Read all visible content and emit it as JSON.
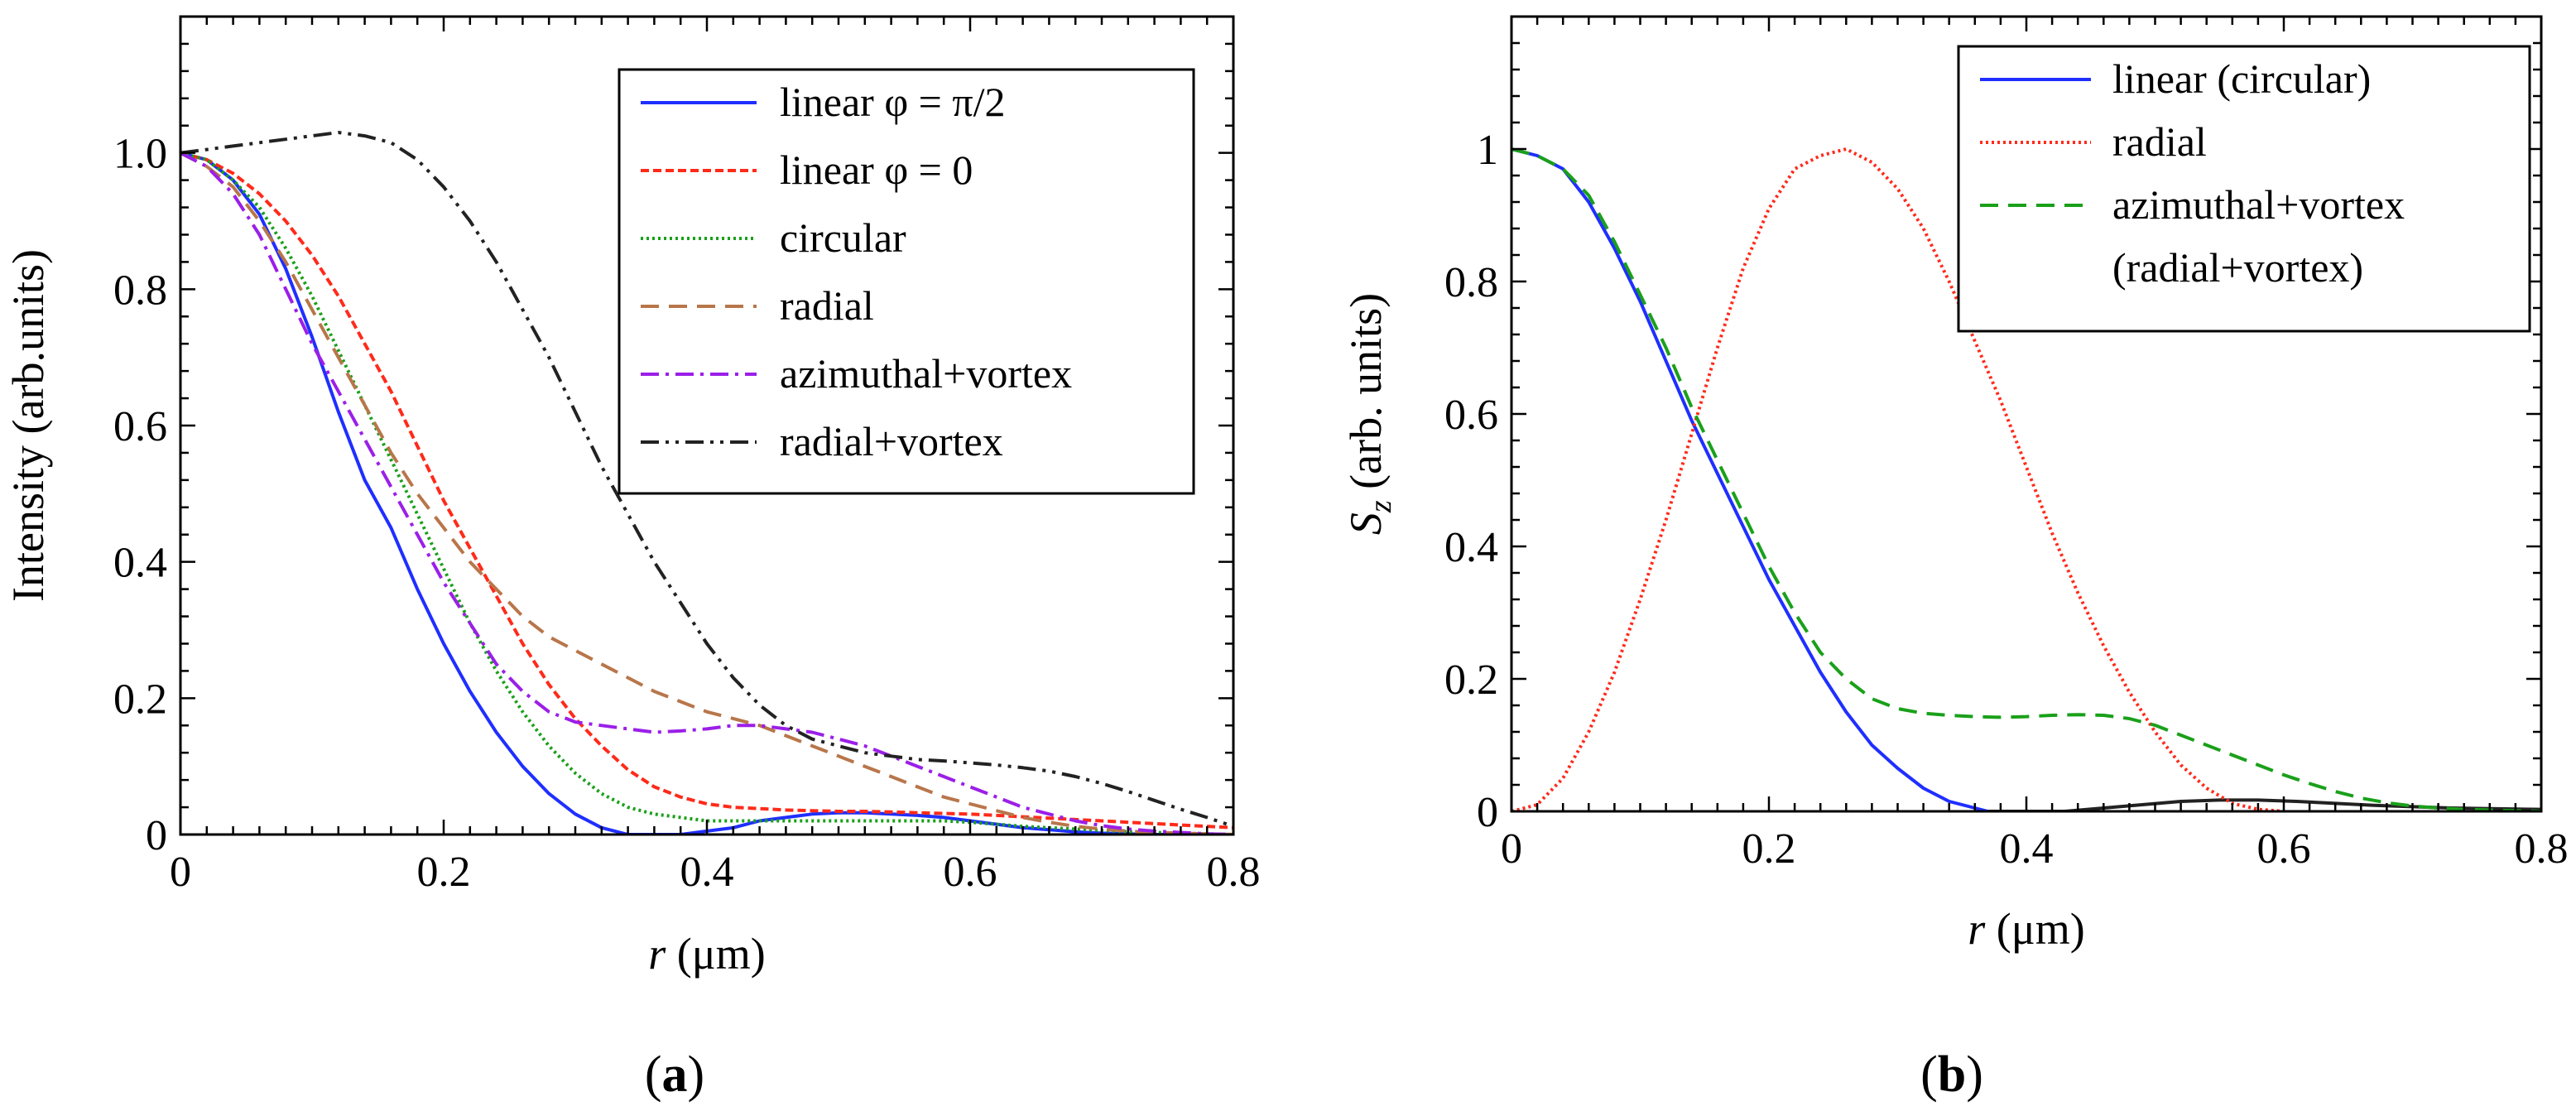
{
  "chart_data": [
    {
      "type": "line",
      "panel_label": "(a)",
      "xlabel": "r (μm)",
      "ylabel": "Intensity (arb.units)",
      "xlim": [
        0,
        0.8
      ],
      "ylim": [
        0,
        1.2
      ],
      "xticks": [
        {
          "value": 0,
          "label": "0"
        },
        {
          "value": 0.2,
          "label": "0.2"
        },
        {
          "value": 0.4,
          "label": "0.4"
        },
        {
          "value": 0.6,
          "label": "0.6"
        },
        {
          "value": 0.8,
          "label": "0.8"
        }
      ],
      "yticks": [
        {
          "value": 0,
          "label": "0"
        },
        {
          "value": 0.2,
          "label": "0.2"
        },
        {
          "value": 0.4,
          "label": "0.4"
        },
        {
          "value": 0.6,
          "label": "0.6"
        },
        {
          "value": 0.8,
          "label": "0.8"
        },
        {
          "value": 1.0,
          "label": "1.0"
        }
      ],
      "legend_position": "top-right",
      "series": [
        {
          "name": "linear φ = π/2",
          "color": "#1f2fff",
          "dash": "solid",
          "x": [
            0,
            0.02,
            0.04,
            0.06,
            0.08,
            0.1,
            0.12,
            0.14,
            0.16,
            0.18,
            0.2,
            0.22,
            0.24,
            0.26,
            0.28,
            0.3,
            0.32,
            0.34,
            0.36,
            0.38,
            0.4,
            0.42,
            0.44,
            0.46,
            0.48,
            0.5,
            0.52,
            0.54,
            0.56,
            0.58,
            0.6,
            0.62,
            0.64,
            0.66,
            0.68,
            0.7,
            0.72,
            0.74,
            0.76,
            0.78,
            0.8
          ],
          "y": [
            1.0,
            0.99,
            0.96,
            0.91,
            0.83,
            0.73,
            0.62,
            0.52,
            0.45,
            0.36,
            0.28,
            0.21,
            0.15,
            0.1,
            0.06,
            0.03,
            0.01,
            0.0,
            0.0,
            0.0,
            0.005,
            0.01,
            0.02,
            0.025,
            0.03,
            0.032,
            0.032,
            0.03,
            0.028,
            0.025,
            0.02,
            0.015,
            0.01,
            0.007,
            0.004,
            0.002,
            0.001,
            0.0,
            0.0,
            0.0,
            0.0
          ]
        },
        {
          "name": "linear φ = 0",
          "color": "#ff2a1a",
          "dash": "10 5",
          "x": [
            0,
            0.02,
            0.04,
            0.06,
            0.08,
            0.1,
            0.12,
            0.14,
            0.16,
            0.18,
            0.2,
            0.22,
            0.24,
            0.26,
            0.28,
            0.3,
            0.32,
            0.34,
            0.36,
            0.38,
            0.4,
            0.42,
            0.44,
            0.46,
            0.48,
            0.5,
            0.52,
            0.54,
            0.56,
            0.58,
            0.6,
            0.62,
            0.64,
            0.66,
            0.68,
            0.7,
            0.72,
            0.74,
            0.76,
            0.78,
            0.8
          ],
          "y": [
            1.0,
            0.99,
            0.97,
            0.94,
            0.9,
            0.85,
            0.79,
            0.72,
            0.65,
            0.57,
            0.49,
            0.42,
            0.35,
            0.28,
            0.22,
            0.17,
            0.13,
            0.095,
            0.07,
            0.055,
            0.045,
            0.04,
            0.038,
            0.036,
            0.035,
            0.034,
            0.034,
            0.033,
            0.032,
            0.031,
            0.03,
            0.028,
            0.026,
            0.024,
            0.022,
            0.02,
            0.018,
            0.016,
            0.014,
            0.012,
            0.01
          ]
        },
        {
          "name": "circular",
          "color": "#1aa01a",
          "dash": "3 4",
          "x": [
            0,
            0.02,
            0.04,
            0.06,
            0.08,
            0.1,
            0.12,
            0.14,
            0.16,
            0.18,
            0.2,
            0.22,
            0.24,
            0.26,
            0.28,
            0.3,
            0.32,
            0.34,
            0.36,
            0.38,
            0.4,
            0.42,
            0.44,
            0.46,
            0.48,
            0.5,
            0.52,
            0.54,
            0.56,
            0.58,
            0.6,
            0.62,
            0.64,
            0.66,
            0.68,
            0.7,
            0.72,
            0.74,
            0.76,
            0.78,
            0.8
          ],
          "y": [
            1.0,
            0.99,
            0.96,
            0.92,
            0.86,
            0.79,
            0.71,
            0.63,
            0.55,
            0.47,
            0.39,
            0.31,
            0.24,
            0.18,
            0.13,
            0.09,
            0.06,
            0.04,
            0.03,
            0.025,
            0.02,
            0.02,
            0.02,
            0.02,
            0.02,
            0.02,
            0.02,
            0.02,
            0.02,
            0.02,
            0.018,
            0.015,
            0.012,
            0.01,
            0.008,
            0.006,
            0.004,
            0.003,
            0.002,
            0.001,
            0.0
          ]
        },
        {
          "name": "radial",
          "color": "#b8764a",
          "dash": "22 12",
          "x": [
            0,
            0.02,
            0.04,
            0.06,
            0.08,
            0.1,
            0.12,
            0.14,
            0.16,
            0.18,
            0.2,
            0.22,
            0.24,
            0.26,
            0.28,
            0.3,
            0.32,
            0.34,
            0.36,
            0.38,
            0.4,
            0.42,
            0.44,
            0.46,
            0.48,
            0.5,
            0.52,
            0.54,
            0.56,
            0.58,
            0.6,
            0.62,
            0.64,
            0.66,
            0.68,
            0.7,
            0.72,
            0.74,
            0.76,
            0.78,
            0.8
          ],
          "y": [
            1.0,
            0.98,
            0.95,
            0.9,
            0.84,
            0.77,
            0.7,
            0.63,
            0.56,
            0.5,
            0.45,
            0.4,
            0.36,
            0.32,
            0.29,
            0.27,
            0.25,
            0.23,
            0.21,
            0.195,
            0.18,
            0.17,
            0.16,
            0.145,
            0.13,
            0.115,
            0.1,
            0.085,
            0.07,
            0.055,
            0.045,
            0.035,
            0.025,
            0.018,
            0.012,
            0.008,
            0.005,
            0.003,
            0.002,
            0.001,
            0.0
          ]
        },
        {
          "name": "azimuthal+vortex",
          "color": "#9b1fe8",
          "dash": "22 8 4 8",
          "x": [
            0,
            0.02,
            0.04,
            0.06,
            0.08,
            0.1,
            0.12,
            0.14,
            0.16,
            0.18,
            0.2,
            0.22,
            0.24,
            0.26,
            0.28,
            0.3,
            0.32,
            0.34,
            0.36,
            0.38,
            0.4,
            0.42,
            0.44,
            0.46,
            0.48,
            0.5,
            0.52,
            0.54,
            0.56,
            0.58,
            0.6,
            0.62,
            0.64,
            0.66,
            0.68,
            0.7,
            0.72,
            0.74,
            0.76,
            0.78,
            0.8
          ],
          "y": [
            1.0,
            0.98,
            0.94,
            0.88,
            0.8,
            0.72,
            0.65,
            0.58,
            0.51,
            0.44,
            0.37,
            0.31,
            0.25,
            0.21,
            0.18,
            0.165,
            0.16,
            0.155,
            0.15,
            0.152,
            0.155,
            0.16,
            0.16,
            0.155,
            0.15,
            0.14,
            0.13,
            0.115,
            0.1,
            0.085,
            0.07,
            0.055,
            0.04,
            0.03,
            0.02,
            0.013,
            0.008,
            0.005,
            0.003,
            0.001,
            0.0
          ]
        },
        {
          "name": "radial+vortex",
          "color": "#222222",
          "dash": "22 8 4 8 4 8",
          "x": [
            0,
            0.02,
            0.04,
            0.06,
            0.08,
            0.1,
            0.12,
            0.14,
            0.16,
            0.18,
            0.2,
            0.22,
            0.24,
            0.26,
            0.28,
            0.3,
            0.32,
            0.34,
            0.36,
            0.38,
            0.4,
            0.42,
            0.44,
            0.46,
            0.48,
            0.5,
            0.52,
            0.54,
            0.56,
            0.58,
            0.6,
            0.62,
            0.64,
            0.66,
            0.68,
            0.7,
            0.72,
            0.74,
            0.76,
            0.78,
            0.8
          ],
          "y": [
            1.0,
            1.005,
            1.01,
            1.015,
            1.02,
            1.025,
            1.03,
            1.025,
            1.015,
            0.99,
            0.95,
            0.9,
            0.84,
            0.77,
            0.7,
            0.62,
            0.54,
            0.47,
            0.4,
            0.34,
            0.28,
            0.23,
            0.19,
            0.16,
            0.14,
            0.13,
            0.12,
            0.115,
            0.11,
            0.108,
            0.105,
            0.102,
            0.098,
            0.093,
            0.085,
            0.075,
            0.063,
            0.05,
            0.037,
            0.025,
            0.012
          ]
        }
      ]
    },
    {
      "type": "line",
      "panel_label": "(b)",
      "xlabel": "r (μm)",
      "ylabel": "Sz (arb. units)",
      "ylabel_main": "S",
      "ylabel_sub": "z",
      "ylabel_rest": " (arb. units)",
      "xlim": [
        0,
        0.8
      ],
      "ylim": [
        0,
        1.2
      ],
      "xticks": [
        {
          "value": 0,
          "label": "0"
        },
        {
          "value": 0.2,
          "label": "0.2"
        },
        {
          "value": 0.4,
          "label": "0.4"
        },
        {
          "value": 0.6,
          "label": "0.6"
        },
        {
          "value": 0.8,
          "label": "0.8"
        }
      ],
      "yticks": [
        {
          "value": 0,
          "label": "0"
        },
        {
          "value": 0.2,
          "label": "0.2"
        },
        {
          "value": 0.4,
          "label": "0.4"
        },
        {
          "value": 0.6,
          "label": "0.6"
        },
        {
          "value": 0.8,
          "label": "0.8"
        },
        {
          "value": 1.0,
          "label": "1"
        }
      ],
      "legend_position": "top-right",
      "series": [
        {
          "name": "linear (circular)",
          "color": "#1f2fff",
          "dash": "solid",
          "x": [
            0,
            0.02,
            0.04,
            0.06,
            0.08,
            0.1,
            0.12,
            0.14,
            0.16,
            0.18,
            0.2,
            0.22,
            0.24,
            0.26,
            0.28,
            0.3,
            0.32,
            0.34,
            0.36,
            0.37
          ],
          "y": [
            1.0,
            0.99,
            0.97,
            0.92,
            0.85,
            0.77,
            0.68,
            0.59,
            0.51,
            0.43,
            0.35,
            0.28,
            0.21,
            0.15,
            0.1,
            0.065,
            0.035,
            0.015,
            0.005,
            0.0
          ]
        },
        {
          "name": "linear (circular) tail",
          "color": "#222222",
          "dash": "solid",
          "legend": false,
          "x": [
            0.37,
            0.4,
            0.43,
            0.46,
            0.49,
            0.52,
            0.55,
            0.58,
            0.61,
            0.64,
            0.67,
            0.7,
            0.73,
            0.76,
            0.8
          ],
          "y": [
            0.0,
            0.0,
            0.0,
            0.005,
            0.01,
            0.015,
            0.017,
            0.017,
            0.015,
            0.012,
            0.009,
            0.007,
            0.005,
            0.004,
            0.003
          ]
        },
        {
          "name": "radial",
          "color": "#ff2a1a",
          "dash": "3 4",
          "x": [
            0,
            0.02,
            0.04,
            0.06,
            0.08,
            0.1,
            0.12,
            0.14,
            0.16,
            0.18,
            0.2,
            0.22,
            0.24,
            0.26,
            0.28,
            0.3,
            0.32,
            0.34,
            0.36,
            0.38,
            0.4,
            0.42,
            0.44,
            0.46,
            0.48,
            0.5,
            0.52,
            0.54,
            0.56,
            0.58,
            0.6
          ],
          "y": [
            0.0,
            0.01,
            0.05,
            0.12,
            0.21,
            0.32,
            0.44,
            0.57,
            0.7,
            0.82,
            0.91,
            0.97,
            0.99,
            1.0,
            0.98,
            0.94,
            0.88,
            0.8,
            0.71,
            0.62,
            0.52,
            0.42,
            0.33,
            0.25,
            0.18,
            0.12,
            0.07,
            0.035,
            0.012,
            0.003,
            0.0
          ]
        },
        {
          "name": "azimuthal+vortex",
          "name2": "(radial+vortex)",
          "color": "#1aa01a",
          "dash": "22 12",
          "x": [
            0,
            0.02,
            0.04,
            0.06,
            0.08,
            0.1,
            0.12,
            0.14,
            0.16,
            0.18,
            0.2,
            0.22,
            0.24,
            0.26,
            0.28,
            0.3,
            0.32,
            0.34,
            0.36,
            0.38,
            0.4,
            0.42,
            0.44,
            0.46,
            0.48,
            0.5,
            0.52,
            0.54,
            0.56,
            0.58,
            0.6,
            0.62,
            0.64,
            0.66,
            0.68,
            0.7,
            0.72,
            0.74,
            0.76,
            0.78,
            0.8
          ],
          "y": [
            1.0,
            0.99,
            0.97,
            0.93,
            0.86,
            0.78,
            0.7,
            0.61,
            0.53,
            0.45,
            0.37,
            0.3,
            0.24,
            0.2,
            0.17,
            0.155,
            0.148,
            0.145,
            0.143,
            0.142,
            0.143,
            0.145,
            0.146,
            0.145,
            0.14,
            0.13,
            0.115,
            0.1,
            0.085,
            0.07,
            0.055,
            0.042,
            0.03,
            0.02,
            0.013,
            0.008,
            0.005,
            0.003,
            0.002,
            0.001,
            0.0
          ]
        }
      ]
    }
  ]
}
